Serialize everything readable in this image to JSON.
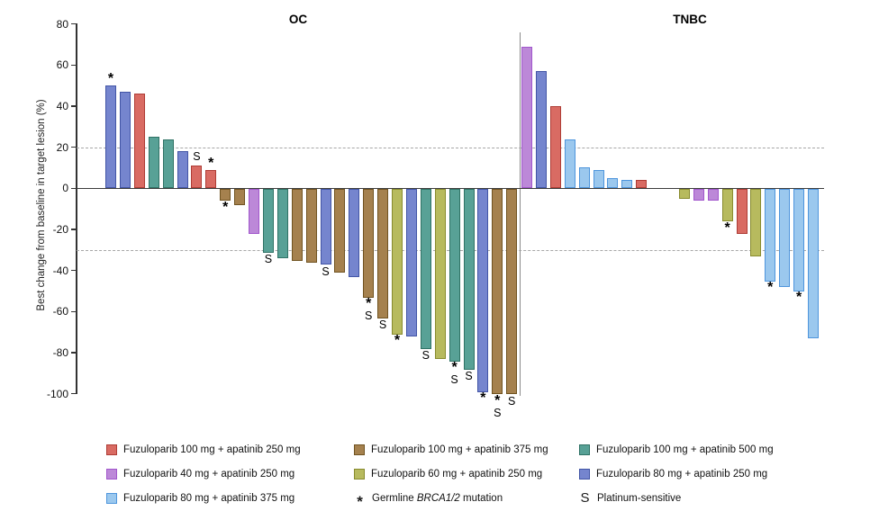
{
  "chart_data": {
    "type": "bar",
    "subtype": "waterfall",
    "title": "",
    "ylabel": "Best change from baseline in target lesion (%)",
    "ylim": [
      -100,
      80
    ],
    "yticks": [
      80,
      60,
      40,
      20,
      0,
      -20,
      -40,
      -60,
      -80,
      -100
    ],
    "threshold_lines": [
      20,
      -30
    ],
    "grid": "off",
    "legend_position": "bottom",
    "colors": {
      "red": {
        "fill": "#d96b63",
        "border": "#ae3c35",
        "label": "Fuzuloparib 100 mg + apatinib 250 mg"
      },
      "orchid": {
        "fill": "#bc88d8",
        "border": "#a156cc",
        "label": "Fuzuloparib 40 mg + apatinib 250 mg"
      },
      "lightblue": {
        "fill": "#9bc8ee",
        "border": "#4e95dc",
        "label": "Fuzuloparib 80 mg + apatinib 375 mg"
      },
      "brown": {
        "fill": "#a5814e",
        "border": "#705321",
        "label": "Fuzuloparib 100 mg + apatinib 375 mg"
      },
      "olive": {
        "fill": "#b7ba5e",
        "border": "#888b2e",
        "label": "Fuzuloparib 60 mg + apatinib 250 mg"
      },
      "teal": {
        "fill": "#58a196",
        "border": "#2f7265",
        "label": "Fuzuloparib 100 mg + apatinib 500 mg"
      },
      "blueviolet": {
        "fill": "#7585ce",
        "border": "#4255a6",
        "label": "Fuzuloparib 80 mg + apatinib 250 mg"
      }
    },
    "panels": [
      {
        "title": "OC",
        "bars": [
          {
            "v": 50,
            "c": "blueviolet",
            "m": [
              "*"
            ]
          },
          {
            "v": 47,
            "c": "blueviolet"
          },
          {
            "v": 46,
            "c": "red"
          },
          {
            "v": 25,
            "c": "teal"
          },
          {
            "v": 24,
            "c": "teal"
          },
          {
            "v": 18,
            "c": "blueviolet"
          },
          {
            "v": 11,
            "c": "red",
            "m": [
              "S"
            ]
          },
          {
            "v": 9,
            "c": "red",
            "m": [
              "*"
            ]
          },
          {
            "v": -6,
            "c": "brown",
            "m": [
              "*"
            ]
          },
          {
            "v": -8,
            "c": "brown"
          },
          {
            "v": -22,
            "c": "orchid"
          },
          {
            "v": -31,
            "c": "teal",
            "m": [
              "S"
            ]
          },
          {
            "v": -34,
            "c": "teal"
          },
          {
            "v": -35,
            "c": "brown"
          },
          {
            "v": -36,
            "c": "brown"
          },
          {
            "v": -37,
            "c": "blueviolet",
            "m": [
              "S"
            ]
          },
          {
            "v": -41,
            "c": "brown"
          },
          {
            "v": -43,
            "c": "blueviolet"
          },
          {
            "v": -53,
            "c": "brown",
            "m": [
              "*",
              "S"
            ]
          },
          {
            "v": -63,
            "c": "brown",
            "m": [
              "S"
            ]
          },
          {
            "v": -71,
            "c": "olive",
            "m": [
              "*"
            ]
          },
          {
            "v": -72,
            "c": "blueviolet"
          },
          {
            "v": -78,
            "c": "teal",
            "m": [
              "S"
            ]
          },
          {
            "v": -83,
            "c": "olive"
          },
          {
            "v": -84,
            "c": "teal",
            "m": [
              "*",
              "S"
            ]
          },
          {
            "v": -88,
            "c": "teal",
            "m": [
              "S"
            ]
          },
          {
            "v": -99,
            "c": "blueviolet",
            "m": [
              "*"
            ]
          },
          {
            "v": -100,
            "c": "brown",
            "m": [
              "*",
              "S"
            ]
          },
          {
            "v": -100,
            "c": "brown",
            "m": [
              "S"
            ]
          }
        ]
      },
      {
        "title": "TNBC",
        "bars": [
          {
            "v": 69,
            "c": "orchid"
          },
          {
            "v": 57,
            "c": "blueviolet"
          },
          {
            "v": 40,
            "c": "red"
          },
          {
            "v": 24,
            "c": "lightblue"
          },
          {
            "v": 10,
            "c": "lightblue"
          },
          {
            "v": 9,
            "c": "lightblue"
          },
          {
            "v": 5,
            "c": "lightblue"
          },
          {
            "v": 4,
            "c": "lightblue"
          },
          {
            "v": 4,
            "c": "red"
          },
          {
            "v": 0,
            "c": "none"
          },
          {
            "v": 0,
            "c": "none"
          },
          {
            "v": -5,
            "c": "olive"
          },
          {
            "v": -6,
            "c": "orchid"
          },
          {
            "v": -6,
            "c": "orchid"
          },
          {
            "v": -16,
            "c": "olive",
            "m": [
              "*"
            ]
          },
          {
            "v": -22,
            "c": "red"
          },
          {
            "v": -33,
            "c": "olive"
          },
          {
            "v": -45,
            "c": "lightblue",
            "m": [
              "*"
            ]
          },
          {
            "v": -48,
            "c": "lightblue"
          },
          {
            "v": -50,
            "c": "lightblue",
            "m": [
              "*"
            ]
          },
          {
            "v": -73,
            "c": "lightblue"
          }
        ]
      }
    ],
    "marker_defs": {
      "*": {
        "prefix": "Germline ",
        "italic": "BRCA1/2",
        "suffix": " mutation"
      },
      "S": {
        "prefix": "",
        "italic": "",
        "suffix": "Platinum-sensitive"
      }
    },
    "legend_columns": [
      [
        "red",
        "orchid",
        "lightblue"
      ],
      [
        "brown",
        "olive",
        "*"
      ],
      [
        "teal",
        "blueviolet",
        "S"
      ]
    ]
  }
}
